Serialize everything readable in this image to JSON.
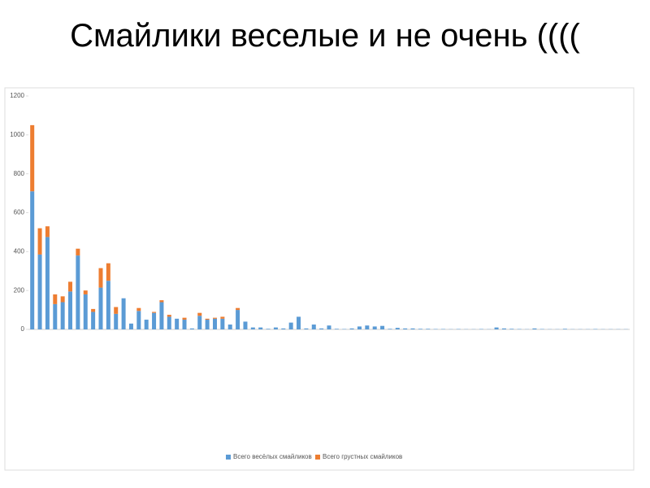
{
  "chart_data": {
    "type": "stacked-bar",
    "title": "Смайлики веселые и не очень ((((",
    "categories": [
      null,
      null,
      null,
      null,
      null,
      null,
      null,
      null,
      null,
      null,
      null,
      null,
      null,
      null,
      null,
      null,
      null,
      null,
      null,
      null,
      null,
      null,
      null,
      null,
      null,
      null,
      null,
      null,
      null,
      null,
      null,
      null,
      null,
      null,
      null,
      null,
      null,
      null,
      null,
      null,
      null,
      null,
      null,
      null,
      null,
      null,
      null,
      null,
      null,
      null,
      null,
      null,
      null,
      null,
      null,
      null,
      null,
      null,
      null,
      null,
      null,
      null,
      null,
      null,
      null,
      null,
      null,
      null,
      null,
      null,
      null,
      null,
      null,
      null,
      null,
      null,
      null,
      null,
      null
    ],
    "series": [
      {
        "name": "Всего весёлых смайликов",
        "color": "#5b9bd5",
        "values": [
          710,
          385,
          475,
          130,
          140,
          195,
          380,
          180,
          90,
          215,
          250,
          80,
          160,
          30,
          95,
          50,
          85,
          140,
          65,
          55,
          50,
          5,
          70,
          50,
          55,
          55,
          25,
          100,
          40,
          10,
          10,
          3,
          10,
          5,
          35,
          65,
          5,
          25,
          5,
          20,
          3,
          2,
          5,
          15,
          20,
          15,
          18,
          3,
          8,
          5,
          5,
          3,
          3,
          2,
          2,
          1,
          2,
          1,
          1,
          2,
          1,
          10,
          5,
          3,
          2,
          1,
          5,
          2,
          1,
          1,
          3,
          1,
          1,
          1,
          2,
          1,
          1,
          1,
          1
        ]
      },
      {
        "name": "Всего грустных смайликов",
        "color": "#ed7d31",
        "values": [
          340,
          135,
          55,
          50,
          30,
          50,
          35,
          20,
          15,
          100,
          90,
          35,
          0,
          0,
          15,
          0,
          5,
          10,
          10,
          0,
          10,
          0,
          15,
          5,
          5,
          10,
          0,
          10,
          0,
          0,
          0,
          0,
          0,
          0,
          0,
          0,
          0,
          0,
          0,
          0,
          0,
          0,
          0,
          0,
          0,
          0,
          0,
          0,
          0,
          0,
          0,
          0,
          0,
          0,
          0,
          0,
          0,
          0,
          0,
          0,
          0,
          0,
          0,
          0,
          0,
          0,
          0,
          0,
          0,
          0,
          0,
          0,
          0,
          0,
          0,
          0,
          0,
          0,
          0
        ]
      }
    ],
    "ylim": [
      0,
      1200
    ],
    "yticks": [
      0,
      200,
      400,
      600,
      800,
      1000,
      1200
    ],
    "grid": false,
    "legend": "bottom"
  }
}
